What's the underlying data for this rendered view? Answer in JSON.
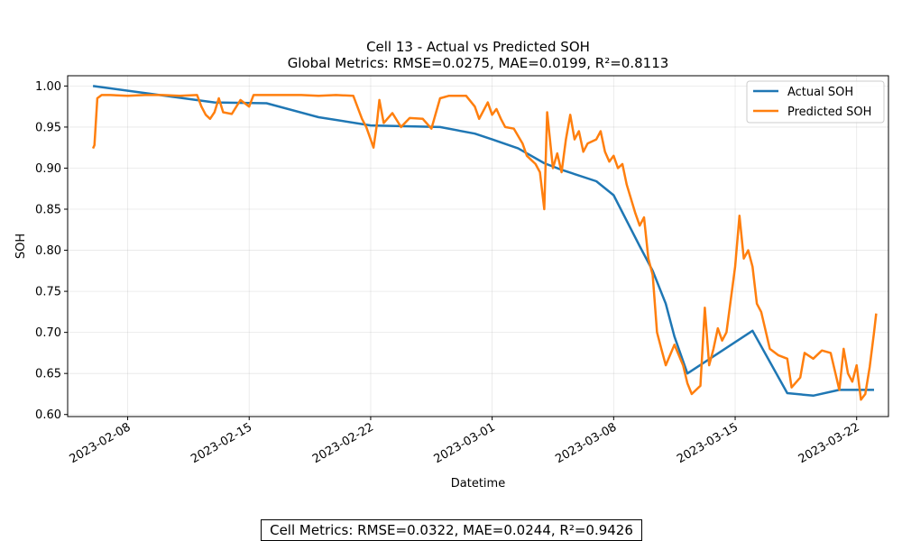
{
  "footer": {
    "metrics_text": "Cell Metrics: RMSE=0.0322, MAE=0.0244, R²=0.9426"
  },
  "chart_data": {
    "type": "line",
    "title": "Cell 13 - Actual vs Predicted SOH",
    "subtitle": "Global Metrics: RMSE=0.0275, MAE=0.0199, R²=0.8113",
    "xlabel": "Datetime",
    "ylabel": "SOH",
    "xlim": [
      "2023-02-04T13:00",
      "2023-03-23T20:00"
    ],
    "ylim": [
      0.5975,
      1.0125
    ],
    "x_ticks": [
      "2023-02-08",
      "2023-02-15",
      "2023-02-22",
      "2023-03-01",
      "2023-03-08",
      "2023-03-15",
      "2023-03-22"
    ],
    "y_ticks": [
      "0.60",
      "0.65",
      "0.70",
      "0.75",
      "0.80",
      "0.85",
      "0.90",
      "0.95",
      "1.00"
    ],
    "grid": true,
    "legend_position": "top-right",
    "series": [
      {
        "name": "Actual SOH",
        "color": "#1f77b4",
        "points": [
          [
            "2023-02-06T00:00",
            1.0
          ],
          [
            "2023-02-09T12:00",
            0.99
          ],
          [
            "2023-02-13T00:00",
            0.98
          ],
          [
            "2023-02-16T00:00",
            0.979
          ],
          [
            "2023-02-19T00:00",
            0.962
          ],
          [
            "2023-02-22T00:00",
            0.952
          ],
          [
            "2023-02-24T00:00",
            0.951
          ],
          [
            "2023-02-26T00:00",
            0.95
          ],
          [
            "2023-02-28T00:00",
            0.942
          ],
          [
            "2023-03-01T00:00",
            0.935
          ],
          [
            "2023-03-02T12:00",
            0.924
          ],
          [
            "2023-03-04T00:00",
            0.906
          ],
          [
            "2023-03-05T00:00",
            0.898
          ],
          [
            "2023-03-07T00:00",
            0.884
          ],
          [
            "2023-03-08T00:00",
            0.867
          ],
          [
            "2023-03-09T12:00",
            0.805
          ],
          [
            "2023-03-10T06:00",
            0.775
          ],
          [
            "2023-03-11T00:00",
            0.735
          ],
          [
            "2023-03-11T12:00",
            0.695
          ],
          [
            "2023-03-12T06:00",
            0.65
          ],
          [
            "2023-03-16T00:00",
            0.702
          ],
          [
            "2023-03-18T00:00",
            0.626
          ],
          [
            "2023-03-19T12:00",
            0.623
          ],
          [
            "2023-03-21T00:00",
            0.63
          ],
          [
            "2023-03-23T00:00",
            0.63
          ]
        ]
      },
      {
        "name": "Predicted SOH",
        "color": "#ff7f0e",
        "points": [
          [
            "2023-02-06T00:00",
            0.924
          ],
          [
            "2023-02-06T02:00",
            0.928
          ],
          [
            "2023-02-06T06:00",
            0.985
          ],
          [
            "2023-02-06T12:00",
            0.989
          ],
          [
            "2023-02-07T00:00",
            0.989
          ],
          [
            "2023-02-08T00:00",
            0.988
          ],
          [
            "2023-02-09T00:00",
            0.989
          ],
          [
            "2023-02-10T00:00",
            0.989
          ],
          [
            "2023-02-11T00:00",
            0.988
          ],
          [
            "2023-02-12T00:00",
            0.989
          ],
          [
            "2023-02-12T06:00",
            0.975
          ],
          [
            "2023-02-12T12:00",
            0.965
          ],
          [
            "2023-02-12T18:00",
            0.96
          ],
          [
            "2023-02-13T00:00",
            0.968
          ],
          [
            "2023-02-13T06:00",
            0.985
          ],
          [
            "2023-02-13T12:00",
            0.968
          ],
          [
            "2023-02-14T00:00",
            0.966
          ],
          [
            "2023-02-14T12:00",
            0.983
          ],
          [
            "2023-02-15T00:00",
            0.975
          ],
          [
            "2023-02-15T06:00",
            0.989
          ],
          [
            "2023-02-16T00:00",
            0.989
          ],
          [
            "2023-02-17T00:00",
            0.989
          ],
          [
            "2023-02-18T00:00",
            0.989
          ],
          [
            "2023-02-19T00:00",
            0.988
          ],
          [
            "2023-02-20T00:00",
            0.989
          ],
          [
            "2023-02-21T00:00",
            0.988
          ],
          [
            "2023-02-21T12:00",
            0.96
          ],
          [
            "2023-02-21T18:00",
            0.95
          ],
          [
            "2023-02-22T00:00",
            0.935
          ],
          [
            "2023-02-22T04:00",
            0.925
          ],
          [
            "2023-02-22T08:00",
            0.95
          ],
          [
            "2023-02-22T12:00",
            0.983
          ],
          [
            "2023-02-22T18:00",
            0.955
          ],
          [
            "2023-02-23T06:00",
            0.967
          ],
          [
            "2023-02-23T18:00",
            0.95
          ],
          [
            "2023-02-24T06:00",
            0.961
          ],
          [
            "2023-02-25T00:00",
            0.96
          ],
          [
            "2023-02-25T12:00",
            0.948
          ],
          [
            "2023-02-26T00:00",
            0.985
          ],
          [
            "2023-02-26T12:00",
            0.988
          ],
          [
            "2023-02-27T12:00",
            0.988
          ],
          [
            "2023-02-28T00:00",
            0.975
          ],
          [
            "2023-02-28T06:00",
            0.96
          ],
          [
            "2023-02-28T18:00",
            0.98
          ],
          [
            "2023-03-01T00:00",
            0.965
          ],
          [
            "2023-03-01T06:00",
            0.972
          ],
          [
            "2023-03-01T12:00",
            0.96
          ],
          [
            "2023-03-01T18:00",
            0.95
          ],
          [
            "2023-03-02T06:00",
            0.948
          ],
          [
            "2023-03-02T18:00",
            0.93
          ],
          [
            "2023-03-03T00:00",
            0.915
          ],
          [
            "2023-03-03T12:00",
            0.905
          ],
          [
            "2023-03-03T18:00",
            0.895
          ],
          [
            "2023-03-04T00:00",
            0.85
          ],
          [
            "2023-03-04T04:00",
            0.968
          ],
          [
            "2023-03-04T12:00",
            0.9
          ],
          [
            "2023-03-04T18:00",
            0.918
          ],
          [
            "2023-03-05T00:00",
            0.895
          ],
          [
            "2023-03-05T06:00",
            0.935
          ],
          [
            "2023-03-05T12:00",
            0.965
          ],
          [
            "2023-03-05T18:00",
            0.935
          ],
          [
            "2023-03-06T00:00",
            0.945
          ],
          [
            "2023-03-06T06:00",
            0.92
          ],
          [
            "2023-03-06T12:00",
            0.93
          ],
          [
            "2023-03-07T00:00",
            0.935
          ],
          [
            "2023-03-07T06:00",
            0.945
          ],
          [
            "2023-03-07T12:00",
            0.92
          ],
          [
            "2023-03-07T18:00",
            0.908
          ],
          [
            "2023-03-08T00:00",
            0.915
          ],
          [
            "2023-03-08T06:00",
            0.9
          ],
          [
            "2023-03-08T12:00",
            0.905
          ],
          [
            "2023-03-08T18:00",
            0.88
          ],
          [
            "2023-03-09T06:00",
            0.845
          ],
          [
            "2023-03-09T12:00",
            0.83
          ],
          [
            "2023-03-09T18:00",
            0.84
          ],
          [
            "2023-03-10T00:00",
            0.79
          ],
          [
            "2023-03-10T06:00",
            0.77
          ],
          [
            "2023-03-10T12:00",
            0.7
          ],
          [
            "2023-03-10T18:00",
            0.68
          ],
          [
            "2023-03-11T00:00",
            0.66
          ],
          [
            "2023-03-11T12:00",
            0.685
          ],
          [
            "2023-03-12T00:00",
            0.66
          ],
          [
            "2023-03-12T06:00",
            0.638
          ],
          [
            "2023-03-12T12:00",
            0.625
          ],
          [
            "2023-03-13T00:00",
            0.635
          ],
          [
            "2023-03-13T06:00",
            0.73
          ],
          [
            "2023-03-13T12:00",
            0.66
          ],
          [
            "2023-03-13T18:00",
            0.68
          ],
          [
            "2023-03-14T00:00",
            0.705
          ],
          [
            "2023-03-14T06:00",
            0.69
          ],
          [
            "2023-03-14T12:00",
            0.7
          ],
          [
            "2023-03-15T00:00",
            0.78
          ],
          [
            "2023-03-15T06:00",
            0.842
          ],
          [
            "2023-03-15T12:00",
            0.79
          ],
          [
            "2023-03-15T18:00",
            0.8
          ],
          [
            "2023-03-16T00:00",
            0.78
          ],
          [
            "2023-03-16T06:00",
            0.735
          ],
          [
            "2023-03-16T12:00",
            0.725
          ],
          [
            "2023-03-17T00:00",
            0.68
          ],
          [
            "2023-03-17T12:00",
            0.672
          ],
          [
            "2023-03-18T00:00",
            0.668
          ],
          [
            "2023-03-18T06:00",
            0.633
          ],
          [
            "2023-03-18T18:00",
            0.645
          ],
          [
            "2023-03-19T00:00",
            0.675
          ],
          [
            "2023-03-19T12:00",
            0.668
          ],
          [
            "2023-03-20T00:00",
            0.678
          ],
          [
            "2023-03-20T12:00",
            0.675
          ],
          [
            "2023-03-21T00:00",
            0.63
          ],
          [
            "2023-03-21T06:00",
            0.68
          ],
          [
            "2023-03-21T12:00",
            0.65
          ],
          [
            "2023-03-21T18:00",
            0.64
          ],
          [
            "2023-03-22T00:00",
            0.66
          ],
          [
            "2023-03-22T06:00",
            0.618
          ],
          [
            "2023-03-22T12:00",
            0.625
          ],
          [
            "2023-03-22T18:00",
            0.658
          ],
          [
            "2023-03-23T00:00",
            0.7
          ],
          [
            "2023-03-23T03:00",
            0.723
          ]
        ]
      }
    ]
  }
}
